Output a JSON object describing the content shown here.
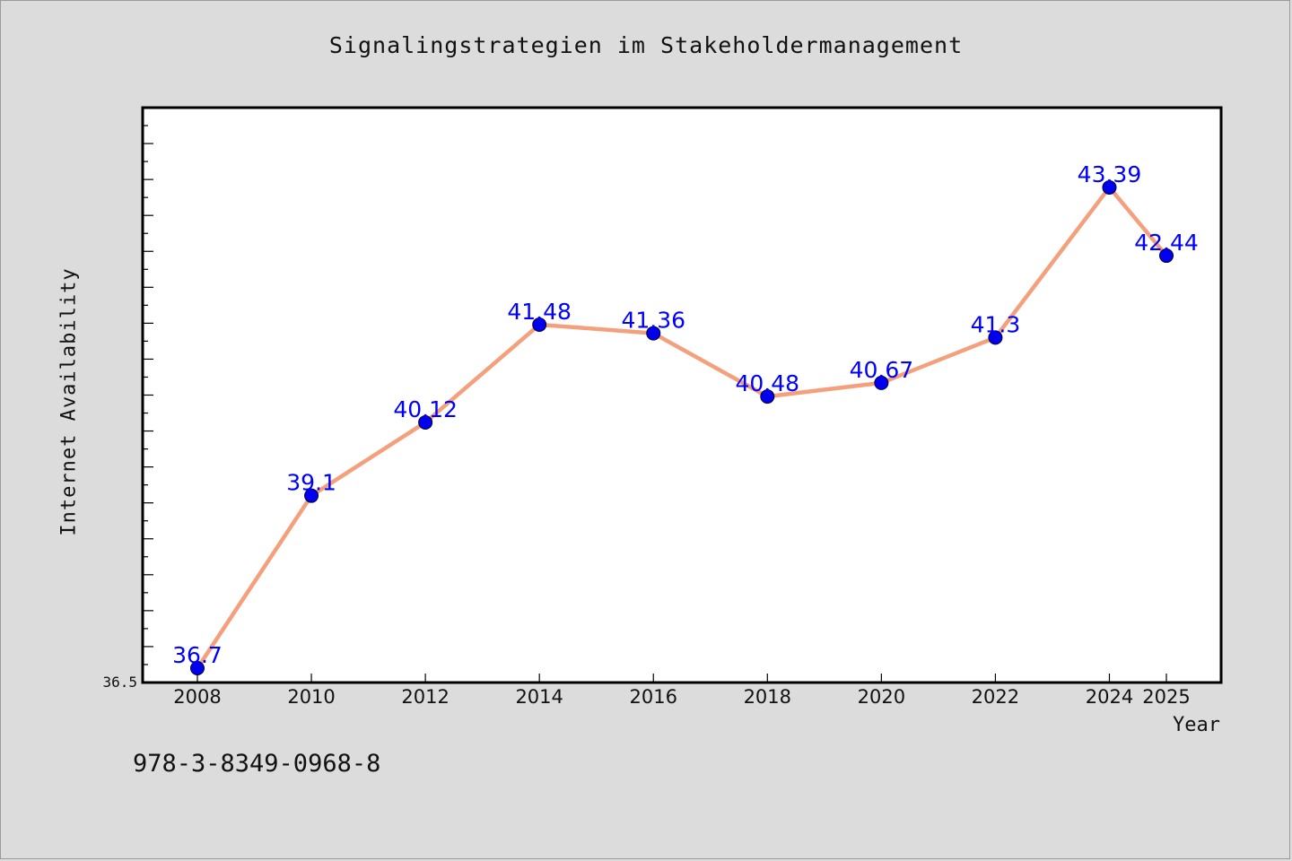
{
  "chart_data": {
    "type": "line",
    "title": "Signalingstrategien im Stakeholdermanagement",
    "xlabel": "Year",
    "ylabel": "Internet Availability",
    "categories": [
      "2008",
      "2010",
      "2012",
      "2014",
      "2016",
      "2018",
      "2020",
      "2022",
      "2024",
      "2025"
    ],
    "series": [
      {
        "values": [
          36.7,
          39.1,
          40.12,
          41.48,
          41.36,
          40.48,
          40.67,
          41.3,
          43.39,
          42.44
        ]
      }
    ],
    "data_labels": [
      "36.7",
      "39.1",
      "40.12",
      "41.48",
      "41.36",
      "40.48",
      "40.67",
      "41.3",
      "43.39",
      "42.44"
    ],
    "ylim": [
      36.5,
      44.5
    ],
    "y_tick_labels": [
      "36.5"
    ],
    "line_color": "#f4a07c",
    "marker_color": "#0000ee",
    "label_color": "#0000ff",
    "grid": false
  },
  "footer": {
    "isbn": "978-3-8349-0968-8"
  }
}
